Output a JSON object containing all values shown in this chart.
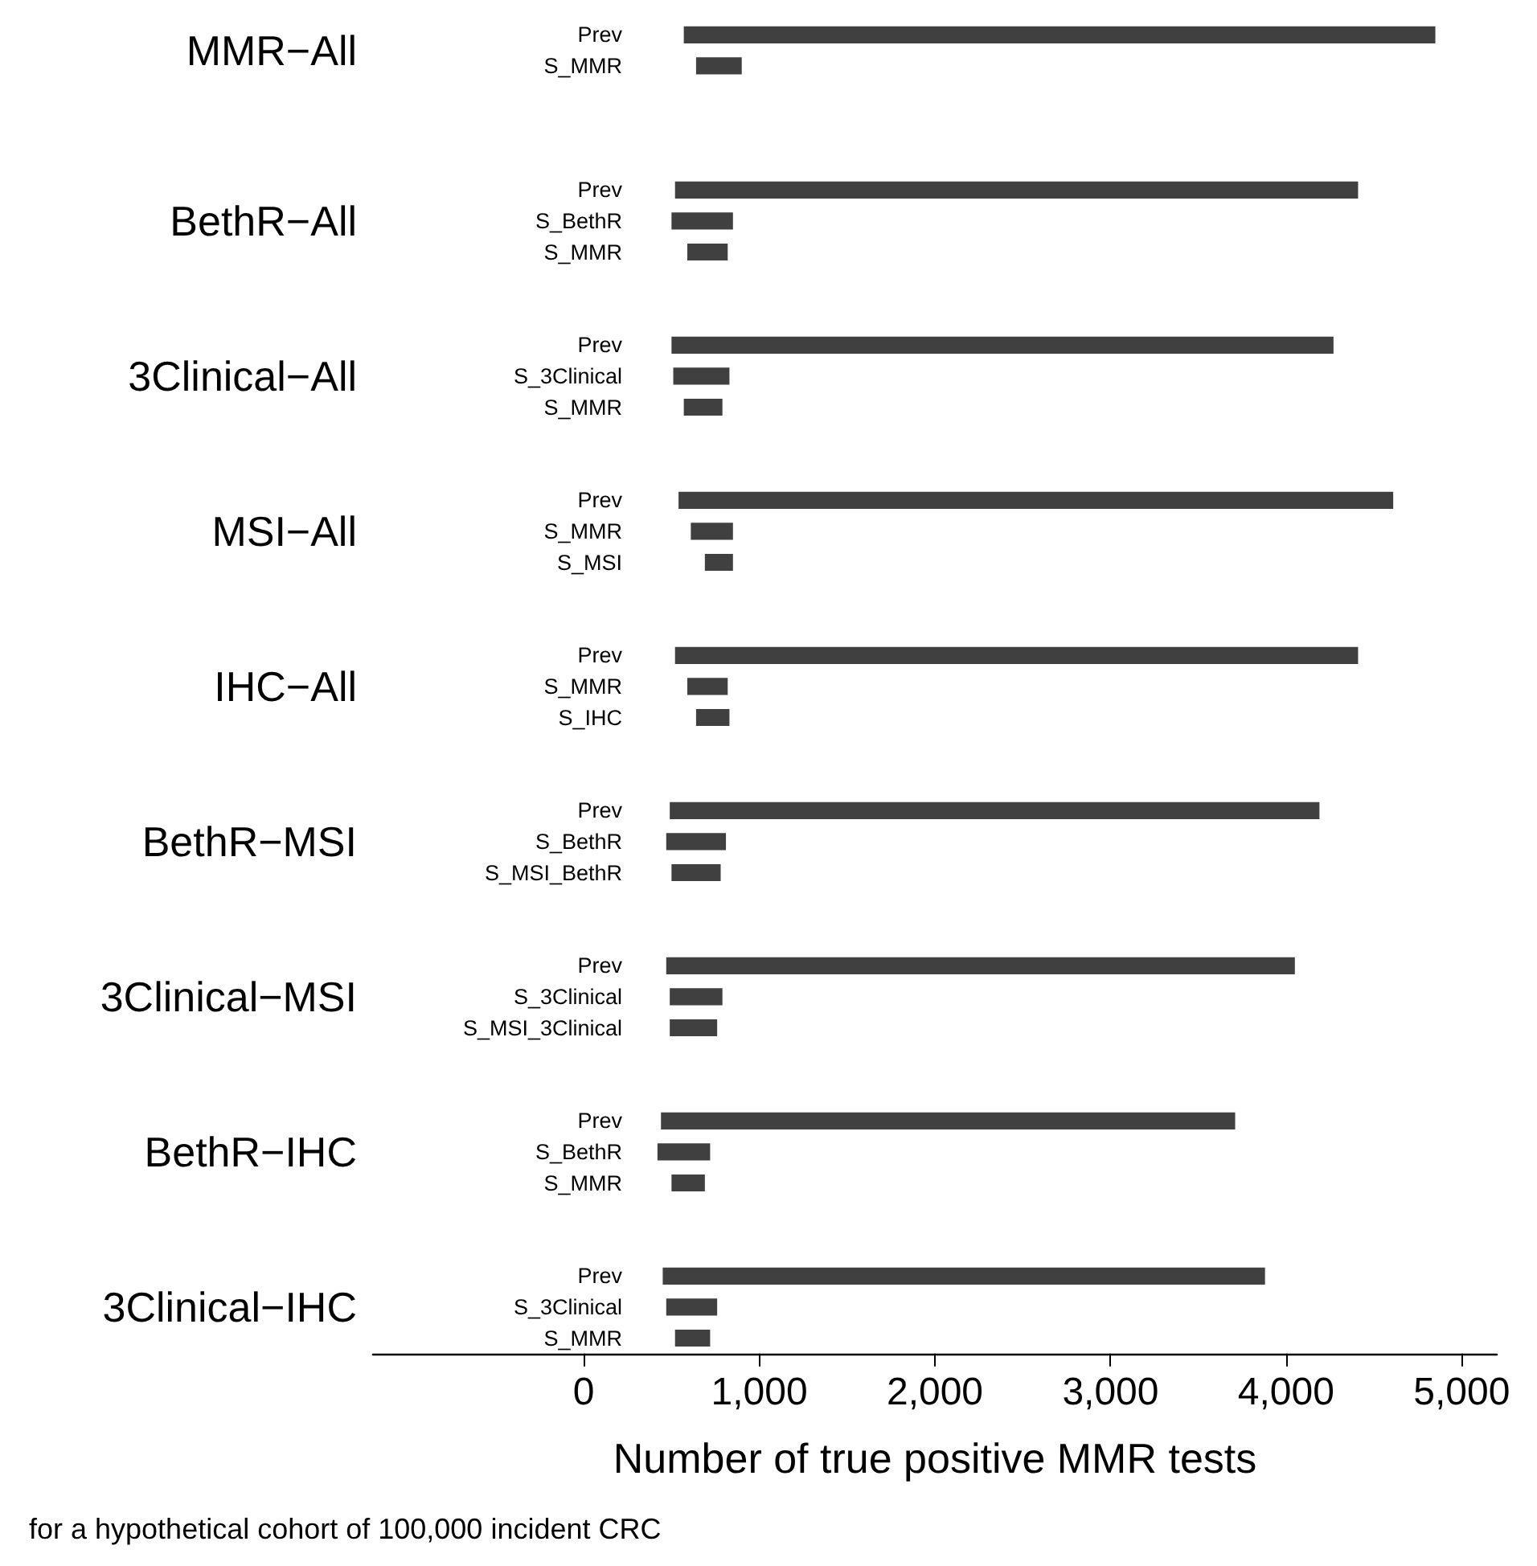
{
  "chart_data": {
    "type": "bar",
    "orientation": "horizontal",
    "categories": [
      "Prev",
      "S_MMR",
      null,
      null,
      null,
      "Prev",
      "S_BethR",
      "S_MMR",
      null,
      null,
      "Prev",
      "S_3Clinical",
      "S_MMR",
      null,
      null,
      "Prev",
      "S_MMR",
      "S_MSI",
      null,
      null,
      "Prev",
      "S_MMR",
      "S_IHC",
      null,
      null,
      "Prev",
      "S_BethR",
      "S_MSI_BethR",
      null,
      null,
      "Prev",
      "S_3Clinical",
      "S_MSI_3Clinical",
      null,
      null,
      "Prev",
      "S_BethR",
      "S_MMR",
      null,
      null,
      "Prev",
      "S_3Clinical",
      "S_MMR"
    ],
    "base": [
      570,
      640,
      null,
      null,
      null,
      520,
      500,
      590,
      null,
      null,
      500,
      510,
      570,
      null,
      null,
      540,
      610,
      690,
      null,
      null,
      520,
      590,
      640,
      null,
      null,
      490,
      470,
      500,
      null,
      null,
      470,
      490,
      490,
      null,
      null,
      440,
      420,
      500,
      null,
      null,
      450,
      470,
      520
    ],
    "values": [
      4280,
      260,
      null,
      null,
      null,
      3890,
      350,
      230,
      null,
      null,
      3770,
      320,
      220,
      null,
      null,
      4070,
      240,
      160,
      null,
      null,
      3890,
      230,
      190,
      null,
      null,
      3700,
      340,
      280,
      null,
      null,
      3580,
      300,
      270,
      null,
      null,
      3270,
      300,
      190,
      null,
      null,
      3430,
      290,
      200
    ],
    "color": "#404040",
    "xlim": [
      -1200,
      5200
    ],
    "xticks": [
      0,
      {
        "value": 1000,
        "label": "1,000"
      },
      {
        "value": 2000,
        "label": "2,000"
      },
      {
        "value": 3000,
        "label": "3,000"
      },
      {
        "value": 4000,
        "label": "4,000"
      },
      {
        "value": 5000,
        "label": "5,000"
      }
    ],
    "xlabel": "Number of true positive MMR tests",
    "annotations": [
      "MMR−All",
      "BethR−All",
      "3Clinical−All",
      "MSI−All",
      "IHC−All",
      "BethR−MSI",
      "3Clinical−MSI",
      "BethR−IHC",
      "3Clinical−IHC",
      "for a hypothetical cohort of 100,000 incident CRC"
    ],
    "grid": false
  }
}
